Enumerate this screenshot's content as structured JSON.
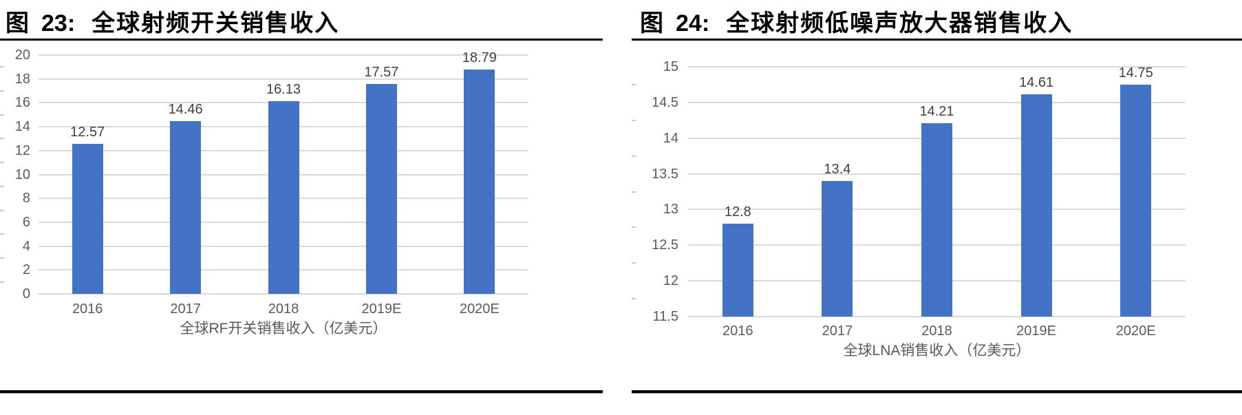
{
  "page": {
    "background": "#FFFFFF"
  },
  "styles": {
    "bar_color": "#4472C4",
    "gridline_color": "#D9D9D9",
    "minor_tick_color": "#C9C9C9",
    "axis_text_color": "#595959",
    "data_label_color": "#404040",
    "title_color": "#000000",
    "rule_color": "#000000"
  },
  "figures": [
    {
      "label": "图",
      "number": "23:",
      "title": "全球射频开关销售收入"
    },
    {
      "label": "图",
      "number": "24:",
      "title": "全球射频低噪声放大器销售收入"
    }
  ],
  "chart_data": [
    {
      "type": "bar",
      "title": "图 23: 全球射频开关销售收入",
      "categories": [
        "2016",
        "2017",
        "2018",
        "2019E",
        "2020E"
      ],
      "values": [
        12.57,
        14.46,
        16.13,
        17.57,
        18.79
      ],
      "data_labels": [
        "12.57",
        "14.46",
        "16.13",
        "17.57",
        "18.79"
      ],
      "xlabel": "全球RF开关销售收入（亿美元）",
      "ylabel": "",
      "ylim": [
        0,
        20
      ],
      "yticks": [
        {
          "v": 0,
          "label": "0"
        },
        {
          "v": 2,
          "label": "2"
        },
        {
          "v": 4,
          "label": "4"
        },
        {
          "v": 6,
          "label": "6"
        },
        {
          "v": 8,
          "label": "8"
        },
        {
          "v": 10,
          "label": "10"
        },
        {
          "v": 12,
          "label": "12"
        },
        {
          "v": 14,
          "label": "14"
        },
        {
          "v": 16,
          "label": "16"
        },
        {
          "v": 18,
          "label": "18"
        },
        {
          "v": 20,
          "label": "20"
        }
      ],
      "grid": true,
      "legend": "none",
      "bar_color": "#4472C4"
    },
    {
      "type": "bar",
      "title": "图 24: 全球射频低噪声放大器销售收入",
      "categories": [
        "2016",
        "2017",
        "2018",
        "2019E",
        "2020E"
      ],
      "values": [
        12.8,
        13.4,
        14.21,
        14.61,
        14.75
      ],
      "data_labels": [
        "12.8",
        "13.4",
        "14.21",
        "14.61",
        "14.75"
      ],
      "xlabel": "全球LNA销售收入（亿美元）",
      "ylabel": "",
      "ylim": [
        11.5,
        15
      ],
      "yticks": [
        {
          "v": 11.5,
          "label": "11.5"
        },
        {
          "v": 12,
          "label": "12"
        },
        {
          "v": 12.5,
          "label": "12.5"
        },
        {
          "v": 13,
          "label": "13"
        },
        {
          "v": 13.5,
          "label": "13.5"
        },
        {
          "v": 14,
          "label": "14"
        },
        {
          "v": 14.5,
          "label": "14.5"
        },
        {
          "v": 15,
          "label": "15"
        }
      ],
      "grid": true,
      "legend": "none",
      "bar_color": "#4472C4"
    }
  ]
}
